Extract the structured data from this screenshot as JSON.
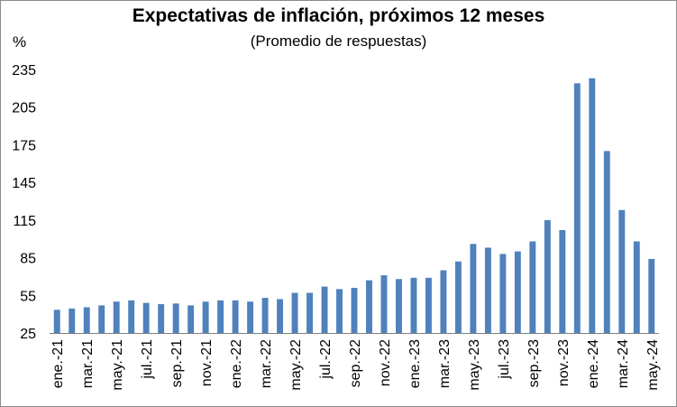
{
  "chart_data": {
    "type": "bar",
    "title": "Expectativas de inflación, próximos 12 meses",
    "subtitle": "(Promedio de respuestas)",
    "ylabel": "%",
    "xlabel": "",
    "ylim": [
      25,
      235
    ],
    "yticks": [
      25,
      55,
      85,
      115,
      145,
      175,
      205,
      235
    ],
    "grid": false,
    "bar_color": "#4f81bd",
    "xtick_labels": [
      "ene.-21",
      "mar.-21",
      "may.-21",
      "jul.-21",
      "sep.-21",
      "nov.-21",
      "ene.-22",
      "mar.-22",
      "may.-22",
      "jul.-22",
      "sep.-22",
      "nov.-22",
      "ene.-23",
      "mar.-23",
      "may.-23",
      "jul.-23",
      "sep.-23",
      "nov.-23",
      "ene.-24",
      "mar.-24",
      "may.-24"
    ],
    "categories": [
      "ene.-21",
      "feb.-21",
      "mar.-21",
      "abr.-21",
      "may.-21",
      "jun.-21",
      "jul.-21",
      "ago.-21",
      "sep.-21",
      "oct.-21",
      "nov.-21",
      "dic.-21",
      "ene.-22",
      "feb.-22",
      "mar.-22",
      "abr.-22",
      "may.-22",
      "jun.-22",
      "jul.-22",
      "ago.-22",
      "sep.-22",
      "oct.-22",
      "nov.-22",
      "dic.-22",
      "ene.-23",
      "feb.-23",
      "mar.-23",
      "abr.-23",
      "may.-23",
      "jun.-23",
      "jul.-23",
      "ago.-23",
      "sep.-23",
      "oct.-23",
      "nov.-23",
      "dic.-23",
      "ene.-24",
      "feb.-24",
      "mar.-24",
      "abr.-24",
      "may.-24"
    ],
    "values": [
      43.5,
      44.5,
      45.5,
      47,
      50,
      51,
      49,
      48,
      48.5,
      47,
      50,
      51,
      51,
      50,
      53,
      52,
      57,
      57,
      62,
      60,
      61,
      67,
      71,
      68,
      69,
      69,
      75,
      82,
      96,
      93,
      88,
      90,
      98,
      115,
      107,
      224,
      228,
      170,
      123,
      98,
      84
    ]
  }
}
